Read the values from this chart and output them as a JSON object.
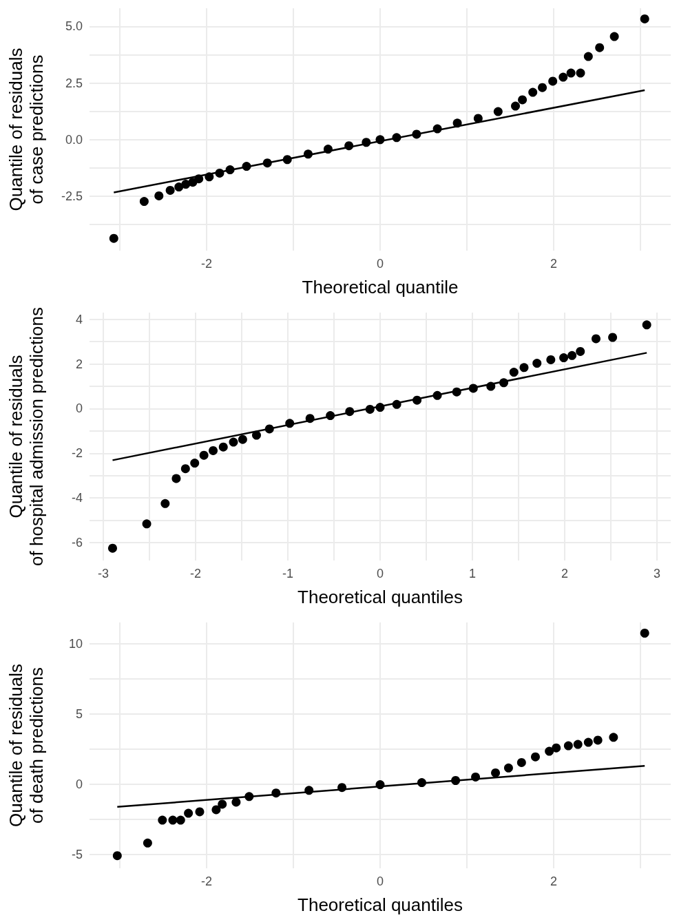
{
  "chart_data": [
    {
      "type": "scatter",
      "xlabel": "Theoretical quantile",
      "ylabel": "Quantile of residuals\nof case predictions",
      "xlim": [
        -3.35,
        3.35
      ],
      "ylim": [
        -4.9,
        5.8
      ],
      "grid": true,
      "xticks": [
        {
          "value": -3,
          "label": null
        },
        -2,
        {
          "value": -1,
          "label": null
        },
        0,
        {
          "value": 1,
          "label": null
        },
        2,
        {
          "value": 3,
          "label": null
        }
      ],
      "yticks": [
        {
          "value": -3.75,
          "label": null
        },
        -2.5,
        {
          "value": -1.25,
          "label": null
        },
        {
          "value": 0,
          "label": "0.0"
        },
        {
          "value": 1.25,
          "label": null
        },
        2.5,
        {
          "value": 3.75,
          "label": null
        },
        {
          "value": 5,
          "label": "5.0"
        }
      ],
      "series": [
        {
          "color": "#000000",
          "marker": "circle",
          "x": [
            -3.07,
            -2.72,
            -2.55,
            -2.42,
            -2.32,
            -2.24,
            -2.16,
            -2.09,
            -1.97,
            -1.85,
            -1.73,
            -1.54,
            -1.3,
            -1.07,
            -0.83,
            -0.6,
            -0.36,
            -0.16,
            0,
            0.19,
            0.42,
            0.66,
            0.89,
            1.13,
            1.36,
            1.56,
            1.64,
            1.76,
            1.87,
            1.99,
            2.11,
            2.2,
            2.31,
            2.4,
            2.53,
            2.7,
            3.05
          ],
          "values": [
            -4.36,
            -2.73,
            -2.48,
            -2.24,
            -2.09,
            -1.97,
            -1.88,
            -1.73,
            -1.64,
            -1.48,
            -1.33,
            -1.18,
            -1.03,
            -0.88,
            -0.64,
            -0.42,
            -0.27,
            -0.12,
            0,
            0.09,
            0.24,
            0.48,
            0.73,
            0.94,
            1.24,
            1.48,
            1.76,
            2.09,
            2.3,
            2.58,
            2.76,
            2.94,
            2.94,
            3.67,
            4.06,
            4.55,
            5.33
          ]
        },
        {
          "type": "line",
          "color": "#000000",
          "marker": "none",
          "x": [
            -3.07,
            3.05
          ],
          "values": [
            -2.33,
            2.18
          ]
        }
      ]
    },
    {
      "type": "scatter",
      "xlabel": "Theoretical quantiles",
      "ylabel": "Quantile of residuals\nof hospital admission predictions",
      "xlim": [
        -3.15,
        3.15
      ],
      "ylim": [
        -6.8,
        4.3
      ],
      "grid": true,
      "xticks": [
        -3,
        {
          "value": -2.5,
          "label": null
        },
        -2,
        {
          "value": -1.5,
          "label": null
        },
        -1,
        {
          "value": -0.5,
          "label": null
        },
        0,
        {
          "value": 0.5,
          "label": null
        },
        1,
        {
          "value": 1.5,
          "label": null
        },
        2,
        {
          "value": 2.5,
          "label": null
        },
        3
      ],
      "yticks": [
        -6,
        {
          "value": -5,
          "label": null
        },
        -4,
        {
          "value": -3,
          "label": null
        },
        -2,
        {
          "value": -1,
          "label": null
        },
        0,
        {
          "value": 1,
          "label": null
        },
        2,
        {
          "value": 3,
          "label": null
        },
        4
      ],
      "series": [
        {
          "color": "#000000",
          "marker": "circle",
          "x": [
            -2.9,
            -2.53,
            -2.33,
            -2.21,
            -2.11,
            -2.01,
            -1.91,
            -1.81,
            -1.7,
            -1.59,
            -1.49,
            -1.34,
            -1.2,
            -0.98,
            -0.76,
            -0.54,
            -0.33,
            -0.11,
            0,
            0.18,
            0.4,
            0.62,
            0.83,
            1.01,
            1.2,
            1.34,
            1.45,
            1.56,
            1.7,
            1.85,
            1.99,
            2.08,
            2.17,
            2.34,
            2.52,
            2.89
          ],
          "values": [
            -6.25,
            -5.16,
            -4.25,
            -3.13,
            -2.69,
            -2.44,
            -2.09,
            -1.88,
            -1.72,
            -1.5,
            -1.38,
            -1.19,
            -0.91,
            -0.66,
            -0.44,
            -0.31,
            -0.13,
            -0.03,
            0.06,
            0.19,
            0.38,
            0.59,
            0.75,
            0.91,
            1,
            1.16,
            1.63,
            1.84,
            2.03,
            2.19,
            2.28,
            2.38,
            2.56,
            3.13,
            3.19,
            3.75
          ]
        },
        {
          "type": "line",
          "color": "#000000",
          "marker": "none",
          "x": [
            -2.9,
            2.89
          ],
          "values": [
            -2.31,
            2.5
          ]
        }
      ]
    },
    {
      "type": "scatter",
      "xlabel": "Theoretical quantiles",
      "ylabel": "Quantile of residuals\nof death predictions",
      "xlim": [
        -3.35,
        3.35
      ],
      "ylim": [
        -6,
        11.5
      ],
      "grid": true,
      "xticks": [
        {
          "value": -3,
          "label": null
        },
        -2,
        {
          "value": -1,
          "label": null
        },
        0,
        {
          "value": 1,
          "label": null
        },
        2,
        {
          "value": 3,
          "label": null
        }
      ],
      "yticks": [
        -5,
        {
          "value": -2.5,
          "label": null
        },
        0,
        {
          "value": 2.5,
          "label": null
        },
        5,
        {
          "value": 7.5,
          "label": null
        },
        10
      ],
      "series": [
        {
          "color": "#000000",
          "marker": "circle",
          "x": [
            -3.03,
            -2.68,
            -2.51,
            -2.39,
            -2.3,
            -2.21,
            -2.08,
            -1.89,
            -1.82,
            -1.66,
            -1.51,
            -1.2,
            -0.82,
            -0.44,
            0,
            0.48,
            0.87,
            1.1,
            1.33,
            1.48,
            1.63,
            1.79,
            1.95,
            2.03,
            2.17,
            2.28,
            2.4,
            2.51,
            2.69,
            3.05
          ],
          "values": [
            -5.1,
            -4.2,
            -2.57,
            -2.57,
            -2.57,
            -2.08,
            -1.98,
            -1.83,
            -1.44,
            -1.29,
            -0.89,
            -0.64,
            -0.45,
            -0.25,
            -0.05,
            0.1,
            0.25,
            0.5,
            0.79,
            1.14,
            1.53,
            1.93,
            2.33,
            2.57,
            2.72,
            2.82,
            2.97,
            3.12,
            3.32,
            10.74
          ]
        },
        {
          "type": "line",
          "color": "#000000",
          "marker": "none",
          "x": [
            -3.03,
            3.05
          ],
          "values": [
            -1.63,
            1.29
          ]
        }
      ]
    }
  ]
}
